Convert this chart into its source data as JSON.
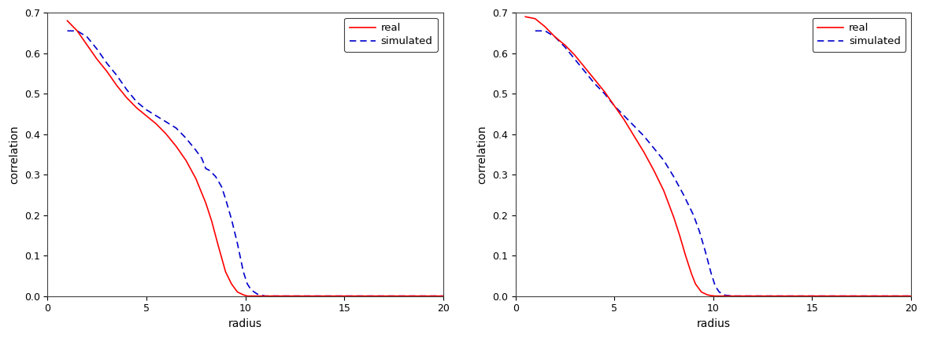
{
  "plot1": {
    "real_x": [
      1,
      1.2,
      1.5,
      2,
      2.5,
      3,
      3.5,
      4,
      4.5,
      5,
      5.5,
      6,
      6.5,
      7,
      7.5,
      8,
      8.3,
      8.6,
      9,
      9.3,
      9.6,
      9.9,
      10.1,
      10.5,
      11,
      15,
      20
    ],
    "real_y": [
      0.68,
      0.67,
      0.655,
      0.62,
      0.585,
      0.555,
      0.52,
      0.49,
      0.465,
      0.445,
      0.425,
      0.4,
      0.37,
      0.335,
      0.29,
      0.23,
      0.185,
      0.13,
      0.06,
      0.03,
      0.01,
      0.003,
      0.0,
      0.0,
      0.0,
      0.0,
      0.0
    ],
    "sim_x": [
      1,
      1.5,
      2,
      2.5,
      3,
      3.5,
      4,
      4.5,
      5,
      5.5,
      6,
      6.5,
      7,
      7.5,
      7.8,
      8.0,
      8.2,
      8.5,
      8.8,
      9.0,
      9.3,
      9.6,
      9.9,
      10.1,
      10.3,
      10.6,
      11,
      15,
      20
    ],
    "sim_y": [
      0.655,
      0.655,
      0.64,
      0.61,
      0.575,
      0.545,
      0.51,
      0.48,
      0.46,
      0.445,
      0.43,
      0.415,
      0.39,
      0.36,
      0.34,
      0.315,
      0.31,
      0.295,
      0.27,
      0.24,
      0.19,
      0.13,
      0.06,
      0.03,
      0.015,
      0.005,
      0.0,
      0.0,
      0.0
    ]
  },
  "plot2": {
    "real_x": [
      0.5,
      1,
      1.5,
      2,
      2.5,
      3,
      3.5,
      4,
      4.5,
      5,
      5.5,
      6,
      6.5,
      7,
      7.5,
      8,
      8.3,
      8.6,
      8.9,
      9.1,
      9.4,
      9.7,
      9.9,
      10.1,
      10.5,
      11,
      15,
      20
    ],
    "real_y": [
      0.69,
      0.685,
      0.665,
      0.64,
      0.62,
      0.595,
      0.565,
      0.535,
      0.505,
      0.47,
      0.435,
      0.395,
      0.355,
      0.31,
      0.26,
      0.195,
      0.15,
      0.1,
      0.055,
      0.03,
      0.01,
      0.003,
      0.001,
      0.0,
      0.0,
      0.0,
      0.0,
      0.0
    ],
    "sim_x": [
      1,
      1.5,
      2,
      2.5,
      3,
      3.5,
      4,
      4.5,
      5,
      5.5,
      6,
      6.5,
      7,
      7.5,
      8,
      8.5,
      9,
      9.3,
      9.6,
      9.9,
      10.1,
      10.3,
      10.6,
      11,
      15,
      20
    ],
    "sim_y": [
      0.655,
      0.655,
      0.64,
      0.615,
      0.585,
      0.555,
      0.525,
      0.5,
      0.47,
      0.445,
      0.42,
      0.395,
      0.365,
      0.335,
      0.295,
      0.25,
      0.2,
      0.16,
      0.11,
      0.055,
      0.025,
      0.01,
      0.002,
      0.0,
      0.0,
      0.0
    ]
  },
  "xlim": [
    0,
    20
  ],
  "ylim": [
    0,
    0.7
  ],
  "xlabel": "radius",
  "ylabel": "correlation",
  "yticks": [
    0,
    0.1,
    0.2,
    0.3,
    0.4,
    0.5,
    0.6,
    0.7
  ],
  "xticks": [
    0,
    5,
    10,
    15,
    20
  ],
  "real_color": "#ff0000",
  "sim_color": "#0000cc",
  "bg_color": "#ffffff",
  "legend_labels": [
    "real",
    "simulated"
  ],
  "figsize": [
    11.76,
    4.3
  ],
  "dpi": 100
}
